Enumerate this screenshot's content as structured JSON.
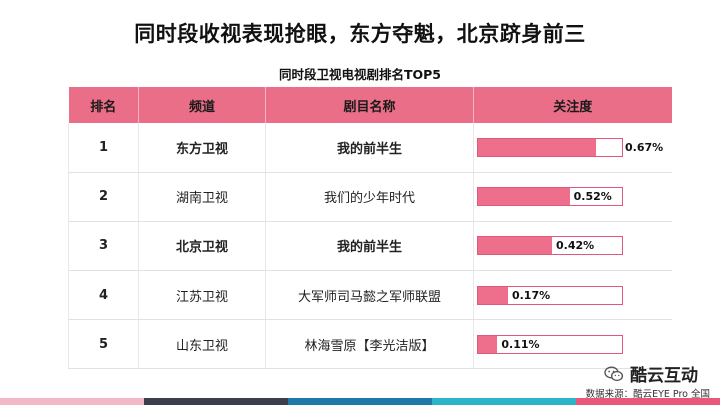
{
  "title": "同时段收视表现抢眼，东方夺魁，北京跻身前三",
  "table_title": "同时段卫视电视剧排名TOP5",
  "headers": [
    "排名",
    "频道",
    "剧目名称",
    "关注度"
  ],
  "rows": [
    {
      "rank": "1",
      "channel": "东方卫视",
      "drama": "我的前半生",
      "attention": "0.67%",
      "attention_value": 0.67,
      "bold": true
    },
    {
      "rank": "2",
      "channel": "湖南卫视",
      "drama": "我们的少年时代",
      "attention": "0.52%",
      "attention_value": 0.52,
      "bold": false
    },
    {
      "rank": "3",
      "channel": "北京卫视",
      "drama": "我的前半生",
      "attention": "0.42%",
      "attention_value": 0.42,
      "bold": true
    },
    {
      "rank": "4",
      "channel": "江苏卫视",
      "drama": "大军师司马懿之军师联盟",
      "attention": "0.17%",
      "attention_value": 0.17,
      "bold": false
    },
    {
      "rank": "5",
      "channel": "山东卫视",
      "drama": "林海雪原【李光洁版】",
      "attention": "0.11%",
      "attention_value": 0.11,
      "bold": false
    }
  ],
  "brand": {
    "name": "酷云互动",
    "icon": "wechat-icon"
  },
  "source": "数据来源：酷云EYE Pro 全国",
  "colors": {
    "header_bg": "#ea6e87",
    "bar_fill": "#ee6f8c",
    "stripes": [
      "#f2b8c6",
      "#3a3f4b",
      "#1f79a8",
      "#2bb5c9",
      "#e8587a"
    ]
  }
}
